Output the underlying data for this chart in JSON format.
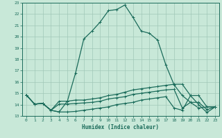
{
  "xlabel": "Humidex (Indice chaleur)",
  "bg_color": "#c8e8d8",
  "grid_color": "#a0c8b8",
  "line_color": "#1a6b5a",
  "xlim": [
    -0.5,
    23.5
  ],
  "ylim": [
    13,
    23
  ],
  "yticks": [
    13,
    14,
    15,
    16,
    17,
    18,
    19,
    20,
    21,
    22,
    23
  ],
  "xticks": [
    0,
    1,
    2,
    3,
    4,
    5,
    6,
    7,
    8,
    9,
    10,
    11,
    12,
    13,
    14,
    15,
    16,
    17,
    18,
    19,
    20,
    21,
    22,
    23
  ],
  "series1_x": [
    0,
    1,
    2,
    3,
    4,
    5,
    6,
    7,
    8,
    9,
    10,
    11,
    12,
    13,
    14,
    15,
    16,
    17,
    18,
    19,
    20,
    21,
    22,
    23
  ],
  "series1_y": [
    14.85,
    14.05,
    14.1,
    13.5,
    13.35,
    14.3,
    16.8,
    19.8,
    20.5,
    21.3,
    22.3,
    22.4,
    22.8,
    21.7,
    20.5,
    20.3,
    19.7,
    17.5,
    15.75,
    14.8,
    14.2,
    13.7,
    13.8,
    13.8
  ],
  "series2_x": [
    0,
    1,
    2,
    3,
    4,
    5,
    6,
    7,
    8,
    9,
    10,
    11,
    12,
    13,
    14,
    15,
    16,
    17,
    18,
    19,
    20,
    21,
    22,
    23
  ],
  "series2_y": [
    14.85,
    14.05,
    14.1,
    13.5,
    14.3,
    14.3,
    14.4,
    14.4,
    14.5,
    14.6,
    14.8,
    14.9,
    15.1,
    15.3,
    15.4,
    15.5,
    15.6,
    15.7,
    15.8,
    15.8,
    14.8,
    14.8,
    13.8,
    13.8
  ],
  "series3_x": [
    0,
    1,
    2,
    3,
    4,
    5,
    6,
    7,
    8,
    9,
    10,
    11,
    12,
    13,
    14,
    15,
    16,
    17,
    18,
    19,
    20,
    21,
    22,
    23
  ],
  "series3_y": [
    14.85,
    14.05,
    14.1,
    13.5,
    14.05,
    14.05,
    14.1,
    14.15,
    14.2,
    14.3,
    14.5,
    14.6,
    14.7,
    14.9,
    15.0,
    15.1,
    15.2,
    15.3,
    15.35,
    13.7,
    14.2,
    14.2,
    13.55,
    13.8
  ],
  "series4_x": [
    0,
    1,
    2,
    3,
    4,
    5,
    6,
    7,
    8,
    9,
    10,
    11,
    12,
    13,
    14,
    15,
    16,
    17,
    18,
    19,
    20,
    21,
    22,
    23
  ],
  "series4_y": [
    14.85,
    14.05,
    14.1,
    13.5,
    13.35,
    13.35,
    13.4,
    13.5,
    13.6,
    13.7,
    13.8,
    14.0,
    14.1,
    14.2,
    14.4,
    14.5,
    14.6,
    14.7,
    13.7,
    13.5,
    14.8,
    14.0,
    13.3,
    13.8
  ]
}
